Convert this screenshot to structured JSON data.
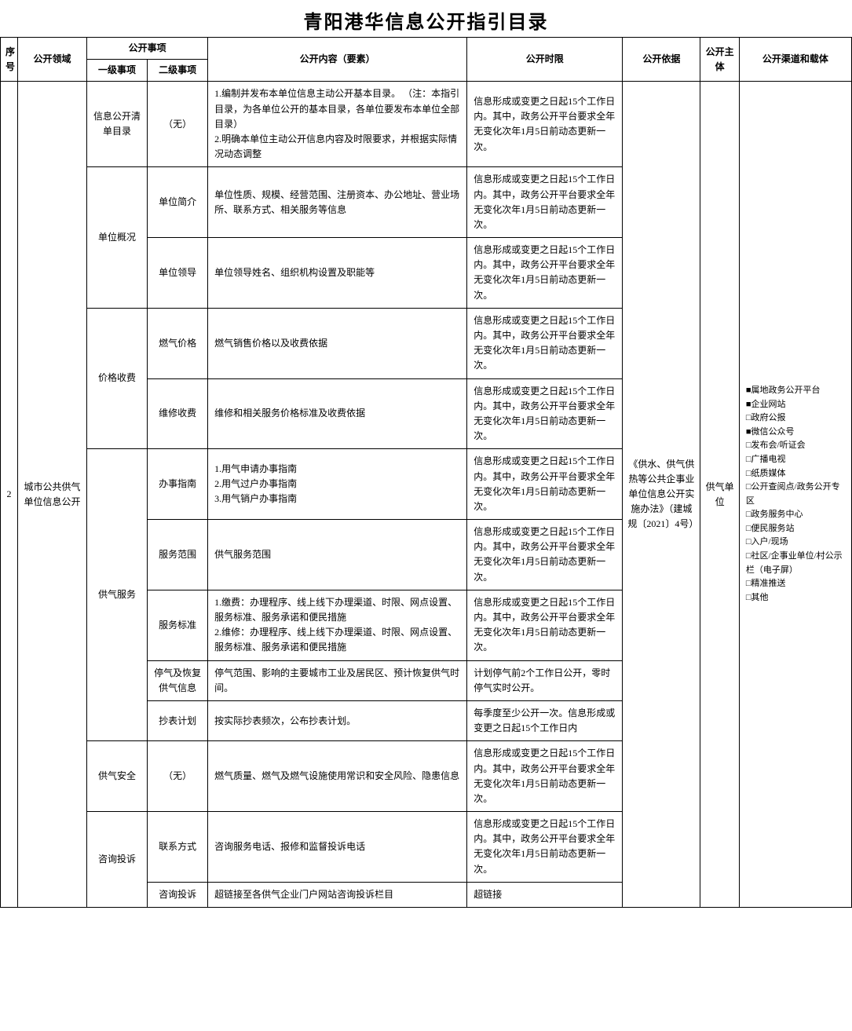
{
  "title": "青阳港华信息公开指引目录",
  "headers": {
    "seq": "序号",
    "domain": "公开领域",
    "matter": "公开事项",
    "l1": "一级事项",
    "l2": "二级事项",
    "content": "公开内容（要素）",
    "timing": "公开时限",
    "basis": "公开依据",
    "subject": "公开主体",
    "channel": "公开渠道和载体"
  },
  "seq": "2",
  "domain": "城市公共供气单位信息公开",
  "basis": "《供水、供气供热等公共企事业单位信息公开实施办法》（建城规〔2021〕4号）",
  "subject": "供气单位",
  "channel": "■属地政务公开平台\n■企业网站\n□政府公报\n■微信公众号\n□发布会/听证会\n□广播电视\n□纸质媒体\n□公开查阅点/政务公开专区\n□政务服务中心\n□便民服务站\n□入户/现场\n□社区/企事业单位/村公示栏（电子屏）\n□精准推送\n□其他",
  "timing_std": "信息形成或变更之日起15个工作日内。其中，政务公开平台要求全年无变化次年1月5日前动态更新一次。",
  "rows": [
    {
      "l1": "信息公开清单目录",
      "l2": "（无）",
      "content": "1.编制并发布本单位信息主动公开基本目录。 （注：本指引目录，为各单位公开的基本目录，各单位要发布本单位全部目录）\n2.明确本单位主动公开信息内容及时限要求，并根据实际情况动态调整",
      "timing_key": "timing_std"
    },
    {
      "l1": "单位概况",
      "l1_rowspan": 2,
      "l2": "单位简介",
      "content": "单位性质、规模、经营范围、注册资本、办公地址、营业场所、联系方式、相关服务等信息",
      "timing_key": "timing_std"
    },
    {
      "l2": "单位领导",
      "content": "单位领导姓名、组织机构设置及职能等",
      "timing_key": "timing_std"
    },
    {
      "l1": "价格收费",
      "l1_rowspan": 2,
      "l2": "燃气价格",
      "content": "燃气销售价格以及收费依据",
      "timing_key": "timing_std"
    },
    {
      "l2": "维修收费",
      "content": "维修和相关服务价格标准及收费依据",
      "timing_key": "timing_std"
    },
    {
      "l1": "供气服务",
      "l1_rowspan": 5,
      "l2": "办事指南",
      "content": "1.用气申请办事指南\n2.用气过户办事指南\n3.用气销户办事指南",
      "timing_key": "timing_std"
    },
    {
      "l2": "服务范围",
      "content": "供气服务范围",
      "timing_key": "timing_std"
    },
    {
      "l2": "服务标准",
      "content": "1.缴费：办理程序、线上线下办理渠道、时限、网点设置、服务标准、服务承诺和便民措施\n2.维修：办理程序、线上线下办理渠道、时限、网点设置、服务标准、服务承诺和便民措施",
      "timing_key": "timing_std"
    },
    {
      "l2": "停气及恢复供气信息",
      "content": "停气范围、影响的主要城市工业及居民区、预计恢复供气时间。",
      "timing": "计划停气前2个工作日公开，零时停气实时公开。"
    },
    {
      "l2": "抄表计划",
      "content": "按实际抄表频次，公布抄表计划。",
      "timing": "每季度至少公开一次。信息形成或变更之日起15个工作日内"
    },
    {
      "l1": "供气安全",
      "l2": "（无）",
      "content": "燃气质量、燃气及燃气设施使用常识和安全风险、隐患信息",
      "timing_key": "timing_std"
    },
    {
      "l1": "咨询投诉",
      "l1_rowspan": 2,
      "l2": "联系方式",
      "content": "咨询服务电话、报修和监督投诉电话",
      "timing_key": "timing_std"
    },
    {
      "l2": "咨询投诉",
      "content": "超链接至各供气企业门户网站咨询投诉栏目",
      "timing": "超链接"
    }
  ]
}
